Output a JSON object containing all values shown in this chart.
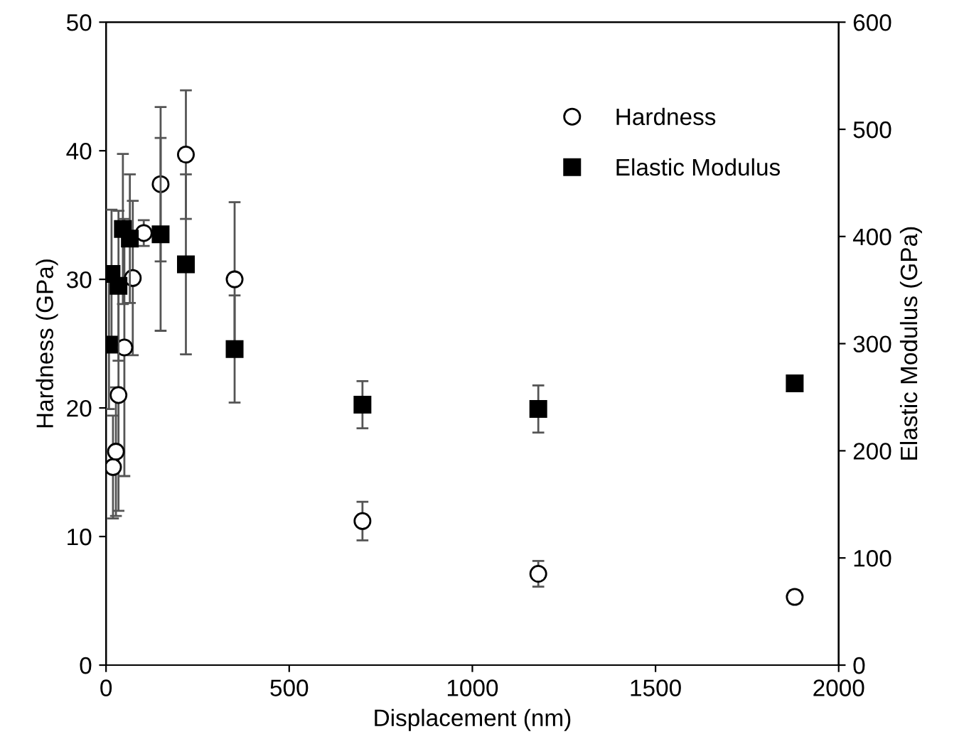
{
  "chart_data": {
    "type": "scatter",
    "xlabel": "Displacement (nm)",
    "ylabel": "Hardness (GPa)",
    "y2label": "Elastic Modulus (GPa)",
    "xlim": [
      0,
      2000
    ],
    "xticks": [
      0,
      500,
      1000,
      1500,
      2000
    ],
    "ylim": [
      0,
      50
    ],
    "yticks": [
      0,
      10,
      20,
      30,
      40,
      50
    ],
    "y2lim": [
      0,
      600
    ],
    "y2ticks": [
      0,
      100,
      200,
      300,
      400,
      500,
      600
    ],
    "grid": false,
    "legend": "top right",
    "series": [
      {
        "name": "Hardness",
        "color": "#000000",
        "marker": "circle",
        "x": [
          19,
          27,
          34,
          50,
          73,
          103,
          149,
          218,
          351,
          700,
          1180,
          1880
        ],
        "values": [
          15.4,
          16.6,
          21,
          24.7,
          30.1,
          33.6,
          37.4,
          39.7,
          30,
          11.2,
          7.1,
          5.3
        ],
        "errors": [
          4,
          5,
          9,
          10,
          6,
          1,
          6,
          5,
          6,
          1.5,
          1,
          0.5
        ]
      },
      {
        "name": "Elastic Modulus",
        "color": "#000000",
        "marker": "square",
        "axis": "y2",
        "x": [
          8,
          15,
          34,
          46,
          65,
          149,
          218,
          351,
          700,
          1180,
          1880
        ],
        "values": [
          299,
          365,
          354,
          407,
          398,
          402,
          374,
          295,
          243,
          239,
          263
        ],
        "errors": [
          60,
          60,
          70,
          70,
          60,
          90,
          84,
          50,
          22,
          22,
          6
        ]
      }
    ]
  }
}
